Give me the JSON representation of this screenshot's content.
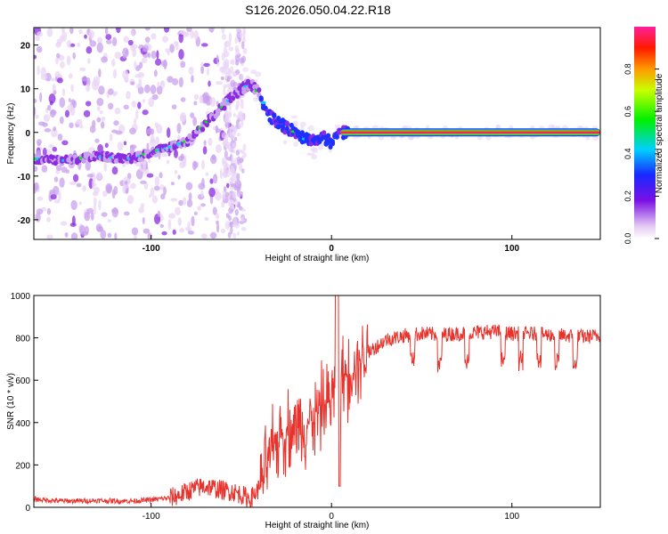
{
  "title": "S126.2026.050.04.22.R18",
  "chart_data": [
    {
      "type": "heatmap",
      "panel": "spectrogram",
      "xlabel": "Height of straight line (km)",
      "ylabel": "Frequency (Hz)",
      "xlim": [
        -165,
        149
      ],
      "ylim": [
        -24.5,
        24
      ],
      "xticks": [
        -100,
        0,
        100
      ],
      "xtick_labels": [
        "-100",
        "0",
        "100"
      ],
      "yticks": [
        -20,
        -10,
        0,
        10,
        20
      ],
      "ytick_labels": [
        "-20",
        "-10",
        "0",
        "10",
        "20"
      ],
      "ridge": {
        "x": [
          -165,
          -150,
          -140,
          -130,
          -120,
          -110,
          -100,
          -90,
          -80,
          -75,
          -70,
          -65,
          -60,
          -55,
          -50,
          -45,
          -40,
          -35,
          -30,
          -25,
          -20,
          -15,
          -10,
          -5,
          0,
          5,
          10,
          20,
          149
        ],
        "y": [
          -6,
          -6.5,
          -6,
          -5.5,
          -5.8,
          -6,
          -4.5,
          -3.5,
          -2,
          0,
          2,
          4,
          6,
          8,
          10,
          11,
          9,
          4,
          2.5,
          1,
          0,
          -1.5,
          -2,
          -1,
          -2.5,
          0,
          0,
          0,
          0
        ]
      },
      "colorbar": {
        "label": "Normalized spectral amplitude",
        "range": [
          0,
          1
        ],
        "ticks": [
          0.0,
          0.2,
          0.4,
          0.6,
          0.8
        ],
        "tick_labels": [
          "0.0",
          "0.2",
          "0.4",
          "0.6",
          "0.8"
        ]
      }
    },
    {
      "type": "line",
      "panel": "snr",
      "xlabel": "Height of straight line (km)",
      "ylabel": "SNR (10 * v/v)",
      "xlim": [
        -165,
        149
      ],
      "ylim": [
        0,
        1000
      ],
      "xticks": [
        -100,
        0,
        100
      ],
      "xtick_labels": [
        "-100",
        "0",
        "100"
      ],
      "yticks": [
        0,
        200,
        400,
        600,
        800,
        1000
      ],
      "ytick_labels": [
        "0",
        "200",
        "400",
        "600",
        "800",
        "1000"
      ],
      "series": [
        {
          "name": "SNR",
          "color": "#e8332d",
          "x": [
            -165,
            -160,
            -150,
            -140,
            -130,
            -120,
            -110,
            -100,
            -90,
            -85,
            -80,
            -75,
            -70,
            -65,
            -60,
            -55,
            -50,
            -45,
            -40,
            -35,
            -30,
            -25,
            -20,
            -15,
            -10,
            -5,
            0,
            3,
            5,
            10,
            15,
            20,
            25,
            30,
            40,
            50,
            60,
            70,
            80,
            90,
            100,
            110,
            120,
            130,
            140,
            149
          ],
          "y": [
            40,
            35,
            30,
            30,
            32,
            30,
            30,
            35,
            45,
            55,
            75,
            90,
            100,
            90,
            80,
            75,
            60,
            40,
            90,
            220,
            320,
            360,
            380,
            390,
            420,
            480,
            520,
            560,
            600,
            640,
            700,
            730,
            760,
            790,
            810,
            820,
            815,
            820,
            825,
            830,
            820,
            820,
            815,
            810,
            805,
            810
          ]
        }
      ],
      "dips_x": [
        -30,
        45,
        60,
        75,
        95,
        105,
        115,
        125,
        135
      ]
    }
  ]
}
